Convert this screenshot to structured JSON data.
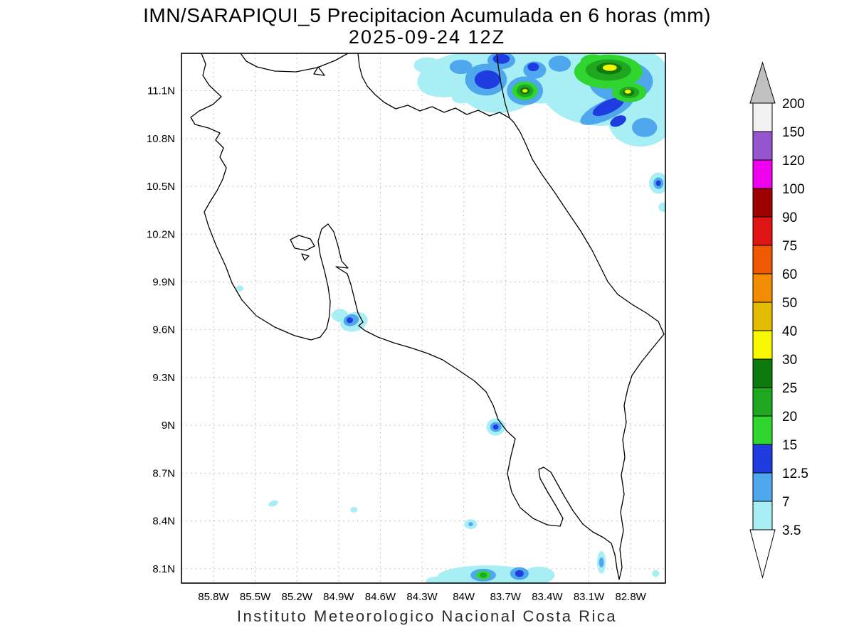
{
  "title": {
    "line1": "IMN/SARAPIQUI_5 Precipitacion Acumulada en 6 horas (mm)",
    "line2": "2025-09-24 12Z"
  },
  "footer": "Instituto Meteorologico Nacional Costa Rica",
  "axes": {
    "x_ticks": [
      {
        "label": "85.8W",
        "lon": -85.8
      },
      {
        "label": "85.5W",
        "lon": -85.5
      },
      {
        "label": "85.2W",
        "lon": -85.2
      },
      {
        "label": "84.9W",
        "lon": -84.9
      },
      {
        "label": "84.6W",
        "lon": -84.6
      },
      {
        "label": "84.3W",
        "lon": -84.3
      },
      {
        "label": "84W",
        "lon": -84.0
      },
      {
        "label": "83.7W",
        "lon": -83.7
      },
      {
        "label": "83.4W",
        "lon": -83.4
      },
      {
        "label": "83.1W",
        "lon": -83.1
      },
      {
        "label": "82.8W",
        "lon": -82.8
      }
    ],
    "y_ticks": [
      {
        "label": "11.1N",
        "lat": 11.1
      },
      {
        "label": "10.8N",
        "lat": 10.8
      },
      {
        "label": "10.5N",
        "lat": 10.5
      },
      {
        "label": "10.2N",
        "lat": 10.2
      },
      {
        "label": "9.9N",
        "lat": 9.9
      },
      {
        "label": "9.6N",
        "lat": 9.6
      },
      {
        "label": "9.3N",
        "lat": 9.3
      },
      {
        "label": "9N",
        "lat": 9.0
      },
      {
        "label": "8.7N",
        "lat": 8.7
      },
      {
        "label": "8.4N",
        "lat": 8.4
      },
      {
        "label": "8.1N",
        "lat": 8.1
      }
    ]
  },
  "colorbar": {
    "labels": [
      "200",
      "150",
      "120",
      "100",
      "90",
      "75",
      "60",
      "50",
      "40",
      "30",
      "25",
      "20",
      "15",
      "12.5",
      "7",
      "3.5"
    ],
    "segments_top_to_bottom": [
      "#F2F2F2",
      "#9555CF",
      "#EF00EF",
      "#9E0000",
      "#E01414",
      "#EF5800",
      "#F28C00",
      "#E3BC00",
      "#F7F700",
      "#0C7A0C",
      "#1FA81F",
      "#30D530",
      "#1E3CE0",
      "#4FA8EE",
      "#A8EEF5"
    ],
    "arrow_top_color": "#C0C0C0",
    "arrow_bottom_color": "#FFFFFF"
  },
  "chart_data": {
    "type": "heatmap",
    "title": "IMN/SARAPIQUI_5 Precipitacion Acumulada en 6 horas (mm)",
    "subtitle": "2025-09-24 12Z",
    "units": "mm",
    "region": "Costa Rica",
    "lon_range": [
      -86.03,
      -82.55
    ],
    "lat_range": [
      8.01,
      11.335
    ],
    "contour_levels_mm": [
      3.5,
      7,
      12.5,
      15,
      20,
      25,
      30,
      40,
      50,
      60,
      75,
      90,
      100,
      120,
      150,
      200
    ],
    "palette": {
      "3.5": "#A8EEF5",
      "7": "#4FA8EE",
      "12.5": "#1E3CE0",
      "15": "#30D530",
      "20": "#1FA81F",
      "25": "#0C7A0C",
      "30": "#F7F700"
    },
    "cell_fields": [
      "mm",
      "lon",
      "lat",
      "rx_deg",
      "ry_deg",
      "rot_deg"
    ],
    "cells": [
      [
        3.5,
        -84.06,
        11.2,
        0.28,
        0.13,
        -15
      ],
      [
        3.5,
        -83.75,
        11.16,
        0.31,
        0.2,
        0
      ],
      [
        3.5,
        -83.45,
        11.2,
        0.28,
        0.18,
        0
      ],
      [
        3.5,
        -83.29,
        11.29,
        0.18,
        0.1,
        0
      ],
      [
        3.5,
        -83.01,
        11.13,
        0.44,
        0.25,
        0
      ],
      [
        3.5,
        -82.91,
        11.25,
        0.36,
        0.13,
        0
      ],
      [
        3.5,
        -82.73,
        10.91,
        0.23,
        0.16,
        0
      ],
      [
        3.5,
        -82.58,
        11.04,
        0.15,
        0.2,
        0
      ],
      [
        3.5,
        -84.26,
        11.26,
        0.1,
        0.05,
        0
      ],
      [
        3.5,
        -84.12,
        11.17,
        0.12,
        0.06,
        -20
      ],
      [
        3.5,
        -83.99,
        11.08,
        0.1,
        0.055,
        -20
      ],
      [
        3.5,
        -82.6,
        10.52,
        0.067,
        0.067,
        0
      ],
      [
        3.5,
        -82.56,
        10.37,
        0.04,
        0.03,
        0
      ],
      [
        3.5,
        -84.79,
        9.65,
        0.1,
        0.06,
        -15
      ],
      [
        3.5,
        -84.89,
        9.69,
        0.06,
        0.04,
        0
      ],
      [
        3.5,
        -85.61,
        9.86,
        0.026,
        0.018,
        0
      ],
      [
        3.5,
        -83.77,
        8.99,
        0.067,
        0.054,
        0
      ],
      [
        3.5,
        -85.37,
        8.51,
        0.036,
        0.018,
        -20
      ],
      [
        3.5,
        -84.79,
        8.47,
        0.026,
        0.018,
        0
      ],
      [
        3.5,
        -83.95,
        8.38,
        0.046,
        0.031,
        0
      ],
      [
        3.5,
        -83.83,
        8.05,
        0.36,
        0.071,
        0
      ],
      [
        3.5,
        -84.2,
        8.02,
        0.072,
        0.031,
        0
      ],
      [
        3.5,
        -83.46,
        8.06,
        0.113,
        0.054,
        0
      ],
      [
        3.5,
        -83.01,
        8.14,
        0.031,
        0.071,
        0
      ],
      [
        3.5,
        -82.62,
        8.07,
        0.026,
        0.022,
        0
      ],
      [
        7,
        -83.84,
        11.17,
        0.15,
        0.1,
        0
      ],
      [
        7,
        -83.56,
        11.1,
        0.13,
        0.09,
        0
      ],
      [
        7,
        -83.73,
        11.29,
        0.1,
        0.054,
        0
      ],
      [
        7,
        -83.49,
        11.23,
        0.082,
        0.054,
        0
      ],
      [
        7,
        -84.02,
        11.25,
        0.082,
        0.045,
        0
      ],
      [
        7,
        -83.31,
        11.27,
        0.08,
        0.05,
        0
      ],
      [
        7,
        -82.97,
        10.98,
        0.21,
        0.06,
        -25
      ],
      [
        7,
        -82.87,
        11.16,
        0.23,
        0.13,
        0
      ],
      [
        7,
        -82.7,
        10.87,
        0.09,
        0.06,
        0
      ],
      [
        7,
        -82.6,
        10.52,
        0.036,
        0.036,
        0
      ],
      [
        7,
        -84.81,
        9.66,
        0.056,
        0.036,
        -15
      ],
      [
        7,
        -83.77,
        8.99,
        0.041,
        0.031,
        0
      ],
      [
        7,
        -83.86,
        8.06,
        0.092,
        0.04,
        0
      ],
      [
        7,
        -83.6,
        8.07,
        0.067,
        0.04,
        0
      ],
      [
        7,
        -83.01,
        8.14,
        0.018,
        0.031,
        0
      ],
      [
        7,
        -83.95,
        8.38,
        0.016,
        0.013,
        0
      ],
      [
        12.5,
        -83.83,
        11.17,
        0.092,
        0.058,
        0
      ],
      [
        12.5,
        -83.73,
        11.3,
        0.061,
        0.031,
        0
      ],
      [
        12.5,
        -83.5,
        11.25,
        0.041,
        0.027,
        0
      ],
      [
        12.5,
        -82.96,
        11.0,
        0.123,
        0.04,
        -25
      ],
      [
        12.5,
        -82.89,
        10.91,
        0.061,
        0.031,
        -25
      ],
      [
        12.5,
        -82.6,
        10.52,
        0.018,
        0.018,
        0
      ],
      [
        12.5,
        -84.82,
        9.66,
        0.023,
        0.018,
        0
      ],
      [
        12.5,
        -83.77,
        8.99,
        0.02,
        0.016,
        0
      ],
      [
        12.5,
        -83.6,
        8.07,
        0.031,
        0.022,
        0
      ],
      [
        15,
        -83.56,
        11.1,
        0.092,
        0.058,
        0
      ],
      [
        15,
        -82.96,
        11.22,
        0.246,
        0.107,
        0
      ],
      [
        15,
        -82.81,
        11.09,
        0.123,
        0.062,
        0
      ],
      [
        15,
        -83.07,
        11.28,
        0.092,
        0.049,
        0
      ],
      [
        15,
        -83.86,
        8.06,
        0.051,
        0.027,
        0
      ],
      [
        20,
        -83.56,
        11.1,
        0.061,
        0.04,
        0
      ],
      [
        20,
        -82.96,
        11.23,
        0.164,
        0.067,
        0
      ],
      [
        20,
        -82.81,
        11.09,
        0.072,
        0.036,
        0
      ],
      [
        20,
        -83.86,
        8.06,
        0.026,
        0.016,
        0
      ],
      [
        25,
        -83.56,
        11.1,
        0.036,
        0.022,
        0
      ],
      [
        25,
        -82.955,
        11.24,
        0.092,
        0.036,
        0
      ],
      [
        25,
        -82.815,
        11.09,
        0.041,
        0.022,
        0
      ],
      [
        30,
        -83.56,
        11.1,
        0.018,
        0.011,
        0
      ],
      [
        30,
        -82.95,
        11.245,
        0.051,
        0.02,
        0
      ],
      [
        30,
        -82.82,
        11.095,
        0.023,
        0.013,
        0
      ]
    ]
  }
}
